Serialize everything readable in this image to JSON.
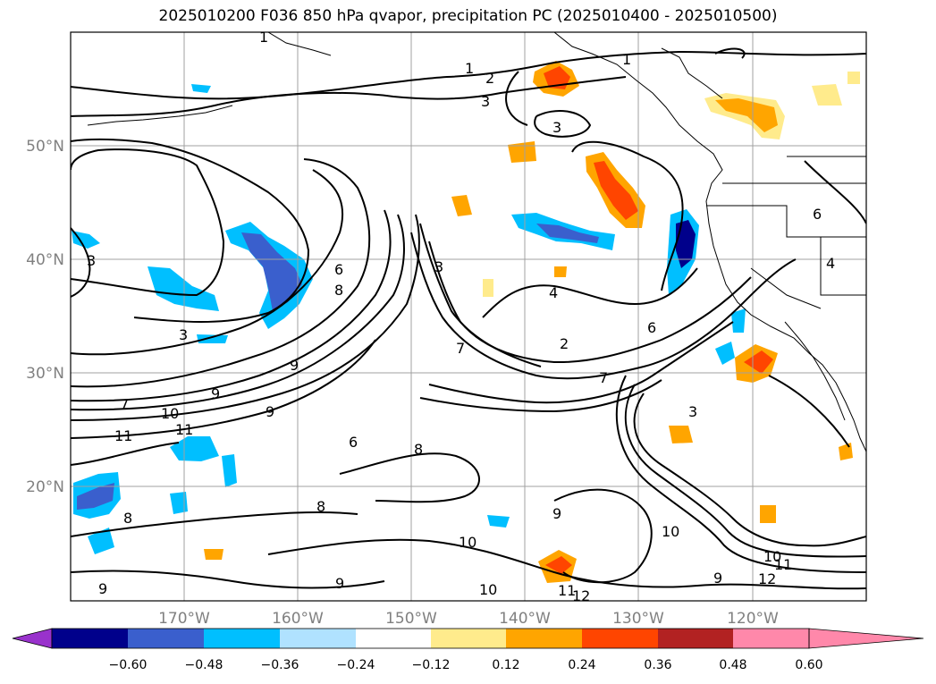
{
  "title": "2025010200 F036 850 hPa qvapor, precipitation PC (2025010400 - 2025010500)",
  "map": {
    "lon_range": [
      -180,
      -110
    ],
    "lat_range": [
      10,
      60
    ],
    "lon_labels": [
      "170°W",
      "160°W",
      "150°W",
      "140°W",
      "130°W",
      "120°W"
    ],
    "lat_labels": [
      "20°N",
      "30°N",
      "40°N",
      "50°N"
    ],
    "grid_color": "#a0a0a0",
    "label_color": "#808080"
  },
  "colorbar": {
    "colors": [
      "#9932cc",
      "#00008b",
      "#3a5fcd",
      "#00bfff",
      "#b0e2ff",
      "#ffffff",
      "#ffeb8c",
      "#ffa500",
      "#ff4500",
      "#b22222",
      "#ff88aa"
    ],
    "ticks": [
      "−0.60",
      "−0.48",
      "−0.36",
      "−0.24",
      "−0.12",
      "0.12",
      "0.24",
      "0.36",
      "0.48",
      "0.60"
    ]
  },
  "contour_labels": [
    "1",
    "2",
    "3",
    "4",
    "6",
    "7",
    "8",
    "9",
    "10",
    "11",
    "12"
  ]
}
